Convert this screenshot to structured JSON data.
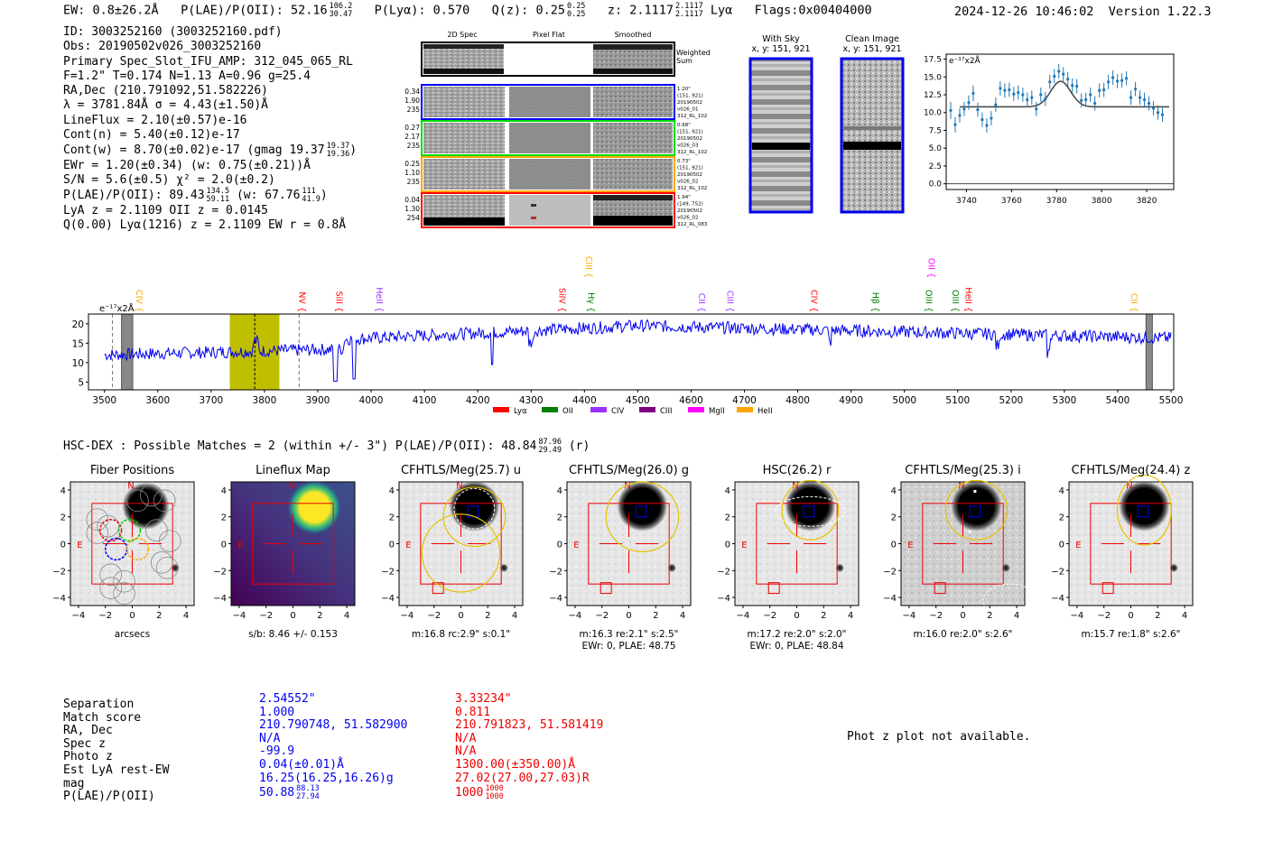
{
  "header": {
    "ew": "EW: 0.8±26.2Å",
    "plae_label": "P(LAE)/P(OII): 52.16",
    "plae_hi": "106.2",
    "plae_lo": "30.47",
    "plya": "P(Lyα): 0.570",
    "qz_label": "Q(z): 0.25",
    "qz_hi": "0.25",
    "qz_lo": "0.25",
    "z_label": "z: 2.1117",
    "z_hi": "2.1117",
    "z_lo": "2.1117",
    "z_line": "Lyα",
    "flags": "Flags:0x00404000",
    "timestamp": "2024-12-26 10:46:02",
    "version": "Version 1.22.3"
  },
  "info": {
    "id": "ID: 3003252160 (3003252160.pdf)",
    "obs": "Obs: 20190502v026_3003252160",
    "primary": "Primary Spec_Slot_IFU_AMP: 312_045_065_RL",
    "params": "F=1.2\"  T=0.174  N=1.13  A=0.96  g=25.4",
    "radec": "RA,Dec (210.791092,51.582226)",
    "lambda": "λ = 3781.84Å   σ = 4.43(±1.50)Å",
    "lineflux": "LineFlux = 2.10(±0.57)e-16",
    "contn": "Cont(n) = 5.40(±0.12)e-17",
    "contw_label": "Cont(w) = 8.70(±0.02)e-17 (gmag 19.37",
    "contw_hi": "19.37",
    "contw_lo": "19.36",
    "ewr": "EWr = 1.20(±0.34) (w: 0.75(±0.21))Å",
    "sn": "S/N = 5.6(±0.5)  χ² = 2.0(±0.2)",
    "plae_label": "P(LAE)/P(OII): 89.43",
    "plae_hi": "134.5",
    "plae_lo": "59.11",
    "plae_w": "(w: 67.76",
    "plae_w_hi": "111",
    "plae_w_lo": "41.9",
    "lya": "LyA z = 2.1109   OII z = 0.0145",
    "q": "Q(0.00) Lyα(1216) z = 2.1109  EW r = 0.8Å"
  },
  "cutouts": {
    "col_titles": [
      "2D Spec",
      "Pixel Flat",
      "Smoothed"
    ],
    "weighted_sum": [
      "Weighted",
      "Sum"
    ],
    "rows": [
      {
        "color": "#0000ff",
        "left": [
          "0.34",
          "1.90",
          "235"
        ],
        "right": [
          "1.20\"",
          "(151, 921)",
          "20190502",
          "v026_01",
          "312_RL_102"
        ]
      },
      {
        "color": "#00dd00",
        "left": [
          "0.27",
          "2.17",
          "235"
        ],
        "right": [
          "0.68\"",
          "(151, 921)",
          "20190502",
          "v026_03",
          "312_RL_102"
        ]
      },
      {
        "color": "#ffa500",
        "left": [
          "0.25",
          "1.10",
          "235"
        ],
        "right": [
          "0.73\"",
          "(151, 921)",
          "20190502",
          "v026_02",
          "312_RL_102"
        ]
      },
      {
        "color": "#ff0000",
        "left": [
          "0.04",
          "1.30",
          "254"
        ],
        "right": [
          "1.94\"",
          "(149, 752)",
          "20190502",
          "v026_02",
          "312_RL_083"
        ]
      }
    ]
  },
  "sky": {
    "with_sky": "With Sky",
    "with_sky_xy": "x, y: 151, 921",
    "clean": "Clean Image",
    "clean_xy": "x, y: 151, 921"
  },
  "zoom_plot": {
    "unit": "e⁻¹⁷x2Å",
    "xticks": [
      "3740",
      "3760",
      "3780",
      "3800",
      "3820"
    ],
    "yticks": [
      "0.0",
      "2.5",
      "5.0",
      "7.5",
      "10.0",
      "12.5",
      "15.0",
      "17.5"
    ],
    "line_color": "#1f77b4"
  },
  "spectrum": {
    "unit": "e⁻¹⁷x2Å",
    "yticks": [
      "5",
      "10",
      "15",
      "20"
    ],
    "xticks": [
      "3500",
      "3600",
      "3700",
      "3800",
      "3900",
      "4000",
      "4100",
      "4200",
      "4300",
      "4400",
      "4500",
      "4600",
      "4700",
      "4800",
      "4900",
      "5000",
      "5100",
      "5200",
      "5300",
      "5400",
      "5500"
    ],
    "lines": [
      {
        "label": "CIV",
        "color": "#ffa500",
        "x": 3555,
        "row": 1
      },
      {
        "label": "NV",
        "color": "#ff0000",
        "x": 3860,
        "row": 1
      },
      {
        "label": "SiII",
        "color": "#ff0000",
        "x": 3930,
        "row": 1
      },
      {
        "label": "HeII",
        "color": "#9933ff",
        "x": 4005,
        "row": 1
      },
      {
        "label": "SiIV",
        "color": "#ff0000",
        "x": 4348,
        "row": 1
      },
      {
        "label": "CIII",
        "color": "#ffa500",
        "x": 4398,
        "row": 0
      },
      {
        "label": "Hγ",
        "color": "#008000",
        "x": 4402,
        "row": 1
      },
      {
        "label": "CII",
        "color": "#9933ff",
        "x": 4609,
        "row": 1
      },
      {
        "label": "CIII",
        "color": "#9933ff",
        "x": 4663,
        "row": 1
      },
      {
        "label": "CIV",
        "color": "#ff0000",
        "x": 4820,
        "row": 1
      },
      {
        "label": "Hβ",
        "color": "#008000",
        "x": 4935,
        "row": 1
      },
      {
        "label": "OIII",
        "color": "#008000",
        "x": 5035,
        "row": 1
      },
      {
        "label": "OII",
        "color": "#ff00ff",
        "x": 5040,
        "row": 0
      },
      {
        "label": "OIII",
        "color": "#008000",
        "x": 5085,
        "row": 1
      },
      {
        "label": "HeII",
        "color": "#ff0000",
        "x": 5110,
        "row": 1
      },
      {
        "label": "CII",
        "color": "#ffa500",
        "x": 5420,
        "row": 1
      }
    ],
    "legend": [
      {
        "label": "Lyα",
        "color": "#ff0000"
      },
      {
        "label": "OII",
        "color": "#008000"
      },
      {
        "label": "CIV",
        "color": "#9933ff"
      },
      {
        "label": "CIII",
        "color": "#800080"
      },
      {
        "label": "MgII",
        "color": "#ff00ff"
      },
      {
        "label": "HeII",
        "color": "#ffa500"
      }
    ]
  },
  "hsc": {
    "title_label": "HSC-DEX : Possible Matches = 2 (within +/- 3\")  P(LAE)/P(OII): 48.84",
    "title_hi": "87.96",
    "title_lo": "29.49",
    "title_band": "(r)"
  },
  "panels": [
    {
      "title": "Fiber Positions",
      "cap1": "arcsecs",
      "cap2": ""
    },
    {
      "title": "Lineflux Map",
      "cap1": "s/b: 8.46 +/- 0.153",
      "cap2": ""
    },
    {
      "title": "CFHTLS/Meg(25.7) u",
      "cap1": "m:16.8 rc:2.9\"  s:0.1\"",
      "cap2": ""
    },
    {
      "title": "CFHTLS/Meg(26.0) g",
      "cap1": "m:16.3  re:2.1\"  s:2.5\"",
      "cap2": "EWr: 0, PLAE: 48.75"
    },
    {
      "title": "HSC(26.2) r",
      "cap1": "m:17.2  re:2.0\"  s:2.0\"",
      "cap2": "EWr: 0, PLAE: 48.84"
    },
    {
      "title": "CFHTLS/Meg(25.3) i",
      "cap1": "m:16.0  re:2.0\"  s:2.6\"",
      "cap2": ""
    },
    {
      "title": "CFHTLS/Meg(24.4) z",
      "cap1": "m:15.7  re:1.8\"  s:2.6\"",
      "cap2": ""
    }
  ],
  "panel_axes": {
    "ticks": [
      "−4",
      "−2",
      "0",
      "2",
      "4"
    ],
    "compass_n": "N",
    "compass_e": "E"
  },
  "table": {
    "labels": [
      "Separation",
      "Match score",
      "RA, Dec",
      "Spec z",
      "Photo z",
      "Est LyA rest-EW",
      "mag",
      "P(LAE)/P(OII)"
    ],
    "blue": [
      "2.54552\"",
      "1.000",
      "210.790748, 51.582900",
      "N/A",
      "-99.9",
      "0.04(±0.01)Å",
      "16.25(16.25,16.26)g",
      "50.88"
    ],
    "blue_plae_hi": "88.13",
    "blue_plae_lo": "27.94",
    "red": [
      "3.33234\"",
      "0.811",
      "210.791823, 51.581419",
      "N/A",
      "N/A",
      "1300.00(±350.00)Å",
      "27.02(27.00,27.03)R",
      "1000"
    ],
    "red_plae_hi": "1000",
    "red_plae_lo": "1000",
    "photz_note": "Phot z plot not available."
  }
}
